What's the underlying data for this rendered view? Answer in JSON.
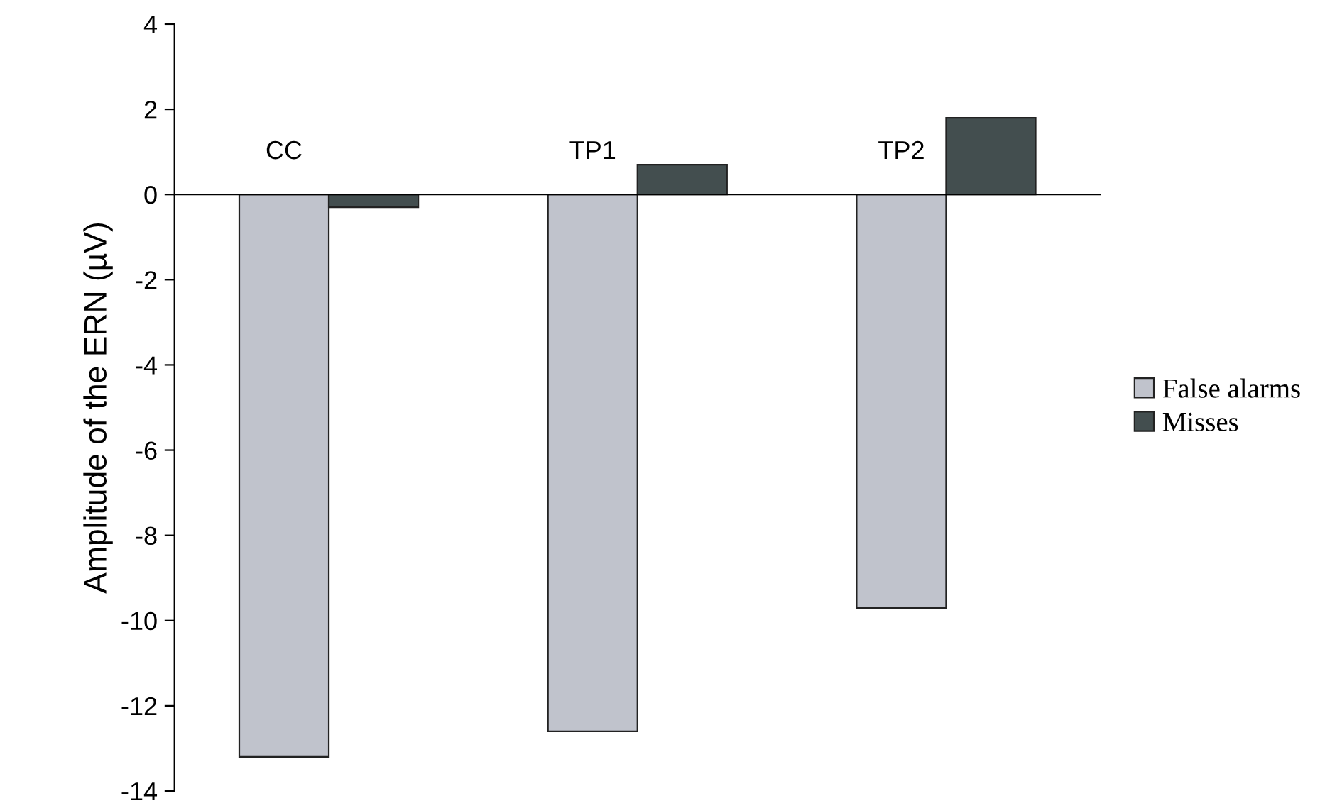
{
  "chart_data": {
    "type": "bar",
    "ylabel": "Amplitude of the ERN (µV)",
    "categories": [
      "CC",
      "TP1",
      "TP2"
    ],
    "series": [
      {
        "name": "False alarms",
        "color": "#c0c3cc",
        "values": [
          -13.2,
          -12.6,
          -9.7
        ]
      },
      {
        "name": "Misses",
        "color": "#434e4f",
        "values": [
          -0.3,
          0.7,
          1.8
        ]
      }
    ],
    "ylim": [
      -14,
      4
    ],
    "yticks": [
      -14,
      -12,
      -10,
      -8,
      -6,
      -4,
      -2,
      0,
      2,
      4
    ],
    "grid": false,
    "legend": "right",
    "tick_labels": "y"
  }
}
